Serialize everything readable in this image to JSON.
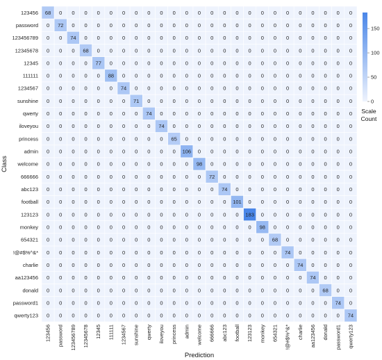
{
  "chart_data": {
    "type": "heatmap",
    "xlabel": "Prediction",
    "ylabel": "Class",
    "labels": [
      "123456",
      "password",
      "123456789",
      "12345678",
      "12345",
      "111111",
      "1234567",
      "sunshine",
      "qwerty",
      "iloveyou",
      "princess",
      "admin",
      "welcome",
      "666666",
      "abc123",
      "football",
      "123123",
      "monkey",
      "654321",
      "!@#$%^&*",
      "charlie",
      "aa123456",
      "donald",
      "password1",
      "qwerty123"
    ],
    "diagonal_values": [
      68,
      72,
      74,
      68,
      77,
      88,
      74,
      71,
      74,
      74,
      65,
      106,
      98,
      72,
      74,
      101,
      183,
      98,
      68,
      74,
      74,
      74,
      68,
      74,
      74
    ],
    "off_diagonal_value": 0,
    "legend": {
      "title_lines": [
        "Scale",
        "Count"
      ],
      "ticks": [
        0,
        50,
        100,
        150
      ],
      "range": [
        0,
        183
      ]
    },
    "colors": {
      "low": "#eef3fd",
      "high": "#4a86e8",
      "grid": "#ffffff"
    }
  }
}
